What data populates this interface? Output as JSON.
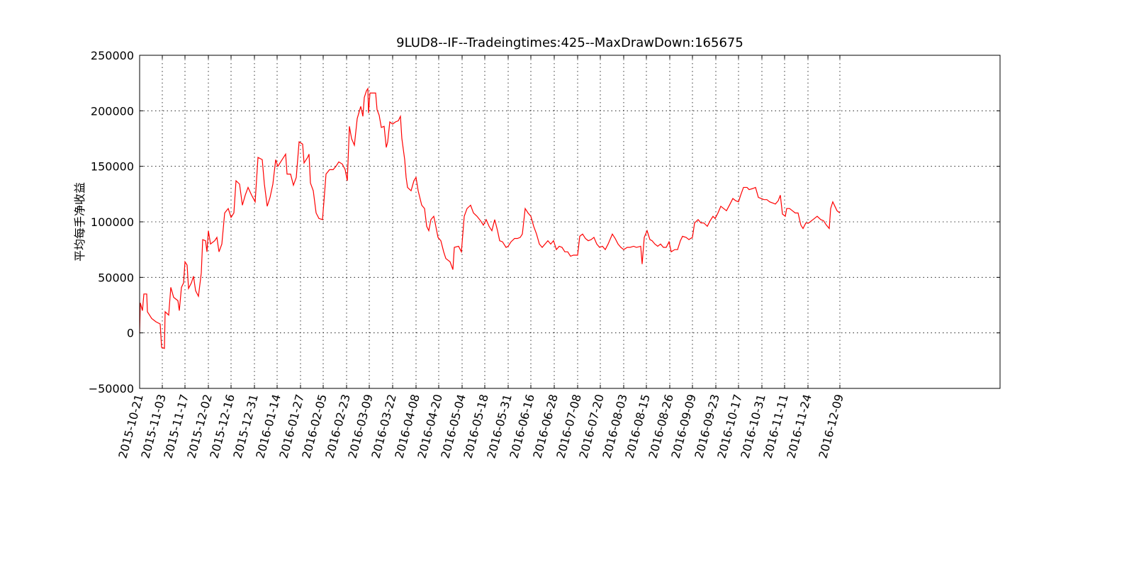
{
  "chart_data": {
    "type": "line",
    "title": "9LUD8--IF--Tradeingtimes:425--MaxDrawDown:165675",
    "y_label": "平均每手净收益",
    "grid": true,
    "xlim": [
      0,
      1214
    ],
    "ylim": [
      -50000,
      250000
    ],
    "yticks": [
      {
        "value": -50000,
        "label": "−50000"
      },
      0,
      50000,
      100000,
      150000,
      200000,
      250000
    ],
    "xticks": [
      {
        "value": 0,
        "label": "2015-10-21"
      },
      {
        "value": 32,
        "label": "2015-11-03"
      },
      {
        "value": 64,
        "label": "2015-11-17"
      },
      {
        "value": 97,
        "label": "2015-12-02"
      },
      {
        "value": 129,
        "label": "2015-12-16"
      },
      {
        "value": 162,
        "label": "2015-12-31"
      },
      {
        "value": 194,
        "label": "2016-01-14"
      },
      {
        "value": 227,
        "label": "2016-01-27"
      },
      {
        "value": 259,
        "label": "2016-02-05"
      },
      {
        "value": 292,
        "label": "2016-02-23"
      },
      {
        "value": 324,
        "label": "2016-03-09"
      },
      {
        "value": 357,
        "label": "2016-03-22"
      },
      {
        "value": 390,
        "label": "2016-04-08"
      },
      {
        "value": 422,
        "label": "2016-04-20"
      },
      {
        "value": 455,
        "label": "2016-05-04"
      },
      {
        "value": 487,
        "label": "2016-05-18"
      },
      {
        "value": 520,
        "label": "2016-05-31"
      },
      {
        "value": 552,
        "label": "2016-06-16"
      },
      {
        "value": 585,
        "label": "2016-06-28"
      },
      {
        "value": 618,
        "label": "2016-07-08"
      },
      {
        "value": 650,
        "label": "2016-07-20"
      },
      {
        "value": 683,
        "label": "2016-08-03"
      },
      {
        "value": 715,
        "label": "2016-08-15"
      },
      {
        "value": 748,
        "label": "2016-08-26"
      },
      {
        "value": 780,
        "label": "2016-09-09"
      },
      {
        "value": 813,
        "label": "2016-09-23"
      },
      {
        "value": 845,
        "label": "2016-10-17"
      },
      {
        "value": 878,
        "label": "2016-10-31"
      },
      {
        "value": 910,
        "label": "2016-11-11"
      },
      {
        "value": 943,
        "label": "2016-11-24"
      },
      {
        "value": 988,
        "label": "2016-12-09"
      }
    ],
    "series": [
      {
        "color": "#ff0000",
        "x": [
          0,
          1,
          4,
          6,
          10,
          11,
          14,
          17,
          23,
          29,
          31,
          35,
          36,
          41,
          44,
          48,
          54,
          56,
          59,
          62,
          64,
          67,
          69,
          73,
          76,
          79,
          83,
          87,
          89,
          93,
          95,
          97,
          100,
          106,
          109,
          112,
          116,
          120,
          125,
          129,
          133,
          136,
          141,
          145,
          149,
          153,
          158,
          163,
          167,
          173,
          176,
          180,
          184,
          188,
          192,
          195,
          201,
          206,
          208,
          213,
          217,
          221,
          225,
          230,
          232,
          237,
          239,
          241,
          245,
          249,
          253,
          258,
          260,
          263,
          268,
          273,
          277,
          281,
          286,
          290,
          293,
          296,
          299,
          303,
          307,
          312,
          315,
          317,
          320,
          322,
          323,
          325,
          328,
          333,
          335,
          338,
          341,
          345,
          348,
          350,
          353,
          357,
          361,
          365,
          368,
          370,
          374,
          376,
          378,
          383,
          387,
          390,
          393,
          398,
          402,
          405,
          408,
          411,
          415,
          417,
          421,
          425,
          429,
          432,
          438,
          442,
          444,
          450,
          454,
          458,
          462,
          467,
          471,
          476,
          481,
          485,
          489,
          493,
          497,
          501,
          505,
          508,
          512,
          517,
          520,
          524,
          529,
          533,
          537,
          540,
          544,
          548,
          552,
          556,
          560,
          564,
          568,
          572,
          576,
          580,
          584,
          588,
          592,
          596,
          600,
          604,
          608,
          612,
          618,
          621,
          625,
          629,
          633,
          637,
          641,
          645,
          649,
          653,
          657,
          661,
          667,
          671,
          675,
          679,
          683,
          688,
          692,
          697,
          701,
          707,
          709,
          712,
          716,
          720,
          723,
          727,
          731,
          735,
          739,
          743,
          747,
          750,
          755,
          759,
          763,
          766,
          771,
          775,
          780,
          783,
          788,
          792,
          796,
          801,
          805,
          809,
          812,
          816,
          820,
          824,
          828,
          833,
          837,
          841,
          845,
          848,
          852,
          857,
          860,
          865,
          869,
          873,
          877,
          881,
          885,
          889,
          893,
          897,
          901,
          904,
          907,
          911,
          913,
          917,
          921,
          925,
          929,
          933,
          936,
          940,
          944,
          948,
          952,
          956,
          961,
          965,
          969,
          973,
          975,
          978,
          981,
          984,
          988
        ],
        "values": [
          0,
          27000,
          20000,
          35000,
          35000,
          19000,
          16000,
          13000,
          10000,
          8000,
          -13000,
          -14000,
          19000,
          16000,
          41000,
          32000,
          29000,
          20000,
          41000,
          45000,
          64000,
          61000,
          40000,
          45000,
          51000,
          38000,
          33000,
          54000,
          84000,
          83000,
          73000,
          92000,
          80000,
          83000,
          86000,
          73000,
          80000,
          108000,
          112000,
          104000,
          108000,
          137000,
          134000,
          115000,
          124000,
          131000,
          124000,
          118000,
          158000,
          156000,
          134000,
          114000,
          122000,
          134000,
          156000,
          150000,
          156000,
          161000,
          143000,
          143000,
          133000,
          140000,
          172000,
          170000,
          153000,
          158000,
          161000,
          135000,
          128000,
          108000,
          103000,
          102000,
          118000,
          143000,
          147000,
          147000,
          150000,
          154000,
          152000,
          147000,
          137000,
          186000,
          175000,
          169000,
          193000,
          204000,
          195000,
          212000,
          218000,
          220000,
          198000,
          216000,
          216000,
          216000,
          201000,
          196000,
          185000,
          186000,
          167000,
          172000,
          190000,
          188000,
          190000,
          191000,
          195000,
          175000,
          156000,
          140000,
          131000,
          128000,
          137000,
          140000,
          128000,
          115000,
          112000,
          96000,
          92000,
          102000,
          105000,
          99000,
          86000,
          83000,
          73000,
          67000,
          64000,
          57000,
          77000,
          78000,
          73000,
          105000,
          112000,
          115000,
          108000,
          105000,
          101000,
          97000,
          102000,
          96000,
          92000,
          102000,
          92000,
          83000,
          82000,
          77000,
          78000,
          82000,
          85000,
          85000,
          86000,
          89000,
          112000,
          108000,
          105000,
          96000,
          89000,
          80000,
          77000,
          80000,
          83000,
          80000,
          83000,
          75000,
          78000,
          77000,
          73000,
          73000,
          69000,
          70000,
          70000,
          87000,
          89000,
          85000,
          83000,
          84000,
          86000,
          80000,
          77000,
          78000,
          75000,
          80000,
          89000,
          85000,
          80000,
          77000,
          75000,
          77000,
          77000,
          78000,
          77000,
          78000,
          62000,
          86000,
          92000,
          84000,
          83000,
          80000,
          78000,
          80000,
          77000,
          77000,
          82000,
          73000,
          75000,
          75000,
          83000,
          87000,
          86000,
          84000,
          86000,
          99000,
          102000,
          99000,
          99000,
          96000,
          101000,
          105000,
          103000,
          108000,
          114000,
          112000,
          110000,
          116000,
          121000,
          119000,
          118000,
          124000,
          131000,
          131000,
          129000,
          130000,
          131000,
          122000,
          121000,
          120000,
          120000,
          118000,
          117000,
          116000,
          119000,
          124000,
          107000,
          105000,
          112000,
          112000,
          110000,
          108000,
          108000,
          97000,
          94000,
          99000,
          99000,
          101000,
          103000,
          105000,
          102000,
          101000,
          97000,
          94000,
          112000,
          118000,
          114000,
          110000,
          108000
        ]
      }
    ]
  }
}
